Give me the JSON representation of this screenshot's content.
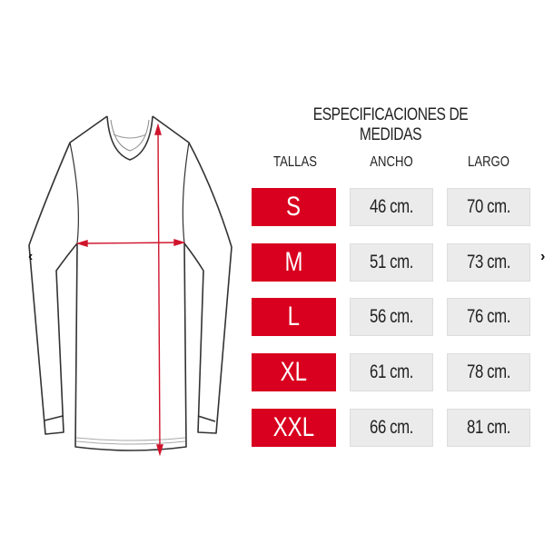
{
  "title": "ESPECIFICACIONES DE MEDIDAS",
  "headers": [
    "TALLAS",
    "ANCHO",
    "LARGO"
  ],
  "rows": [
    {
      "size": "S",
      "ancho": "46 cm.",
      "largo": "70 cm."
    },
    {
      "size": "M",
      "ancho": "51 cm.",
      "largo": "73 cm."
    },
    {
      "size": "L",
      "ancho": "56 cm.",
      "largo": "76 cm."
    },
    {
      "size": "XL",
      "ancho": "61 cm.",
      "largo": "78 cm."
    },
    {
      "size": "XXL",
      "ancho": "66 cm.",
      "largo": "81 cm."
    }
  ],
  "nav": {
    "prev": "‹",
    "next": "›"
  },
  "colors": {
    "accent": "#d8001e",
    "cell": "#ebebeb"
  },
  "icons": {
    "shirt": "long-sleeve-shirt-icon",
    "prev": "chevron-left-icon",
    "next": "chevron-right-icon"
  }
}
